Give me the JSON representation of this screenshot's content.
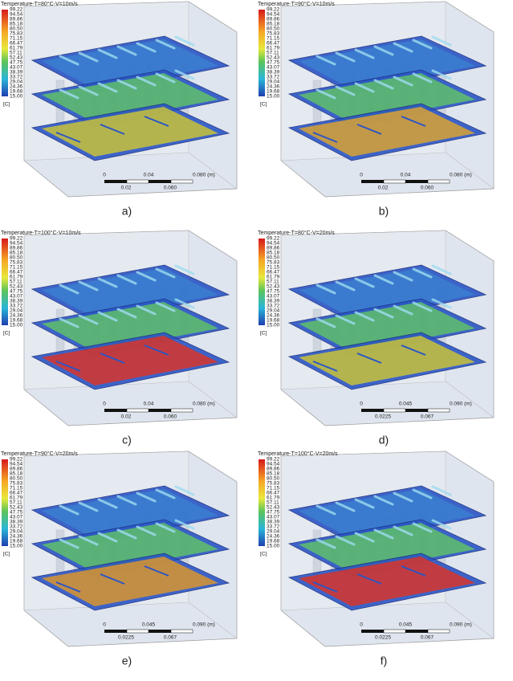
{
  "legend": {
    "values": [
      "99.22",
      "94.54",
      "89.86",
      "85.18",
      "80.50",
      "75.83",
      "71.15",
      "66.47",
      "61.79",
      "57.11",
      "52.43",
      "47.75",
      "43.07",
      "38.39",
      "33.72",
      "29.04",
      "24.36",
      "19.68",
      "15.00"
    ],
    "unit": "[C]"
  },
  "panels": [
    {
      "title": "Temperature-T=80°C-V=10m/s",
      "caption": "a)",
      "scale_top": [
        "0",
        "0.04",
        "0.080 (m)"
      ],
      "scale_bottom": [
        "0.02",
        "0.060"
      ],
      "plate_color": "#c9c23a"
    },
    {
      "title": "Temperature-T=90°C-V=10m/s",
      "caption": "b)",
      "scale_top": [
        "0",
        "0.04",
        "0.080 (m)"
      ],
      "scale_bottom": [
        "0.02",
        "0.060"
      ],
      "plate_color": "#d9a233"
    },
    {
      "title": "Temperature-T=100°C-V=10m/s",
      "caption": "c)",
      "scale_top": [
        "0",
        "0.04",
        "0.080 (m)"
      ],
      "scale_bottom": [
        "0.02",
        "0.060"
      ],
      "plate_color": "#d8352a"
    },
    {
      "title": "Temperature-T=80°C-V=20m/s",
      "caption": "d)",
      "scale_top": [
        "0",
        "0.045",
        "0.090 (m)"
      ],
      "scale_bottom": [
        "0.0225",
        "0.067"
      ],
      "plate_color": "#c9c23a"
    },
    {
      "title": "Temperature-T=90°C-V=20m/s",
      "caption": "e)",
      "scale_top": [
        "0",
        "0.045",
        "0.090 (m)"
      ],
      "scale_bottom": [
        "0.0225",
        "0.067"
      ],
      "plate_color": "#d9952e"
    },
    {
      "title": "Temperature-T=100°C-V=20m/s",
      "caption": "f)",
      "scale_top": [
        "0",
        "0.045",
        "0.090 (m)"
      ],
      "scale_bottom": [
        "0.0225",
        "0.067"
      ],
      "plate_color": "#d8352a"
    }
  ]
}
